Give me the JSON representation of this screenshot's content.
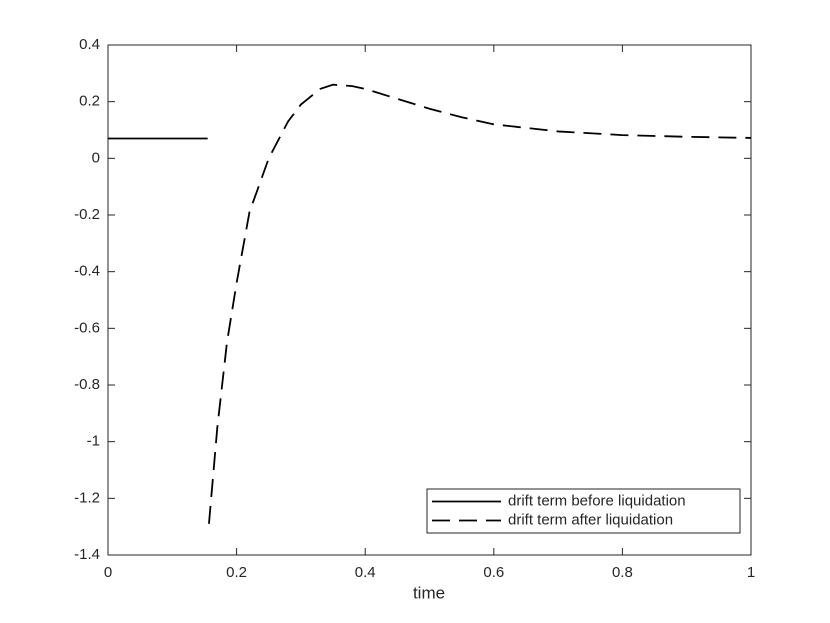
{
  "chart_data": {
    "type": "line",
    "xlabel": "time",
    "xlim": [
      0,
      1
    ],
    "xticks": [
      0,
      0.2,
      0.4,
      0.6,
      0.8,
      1
    ],
    "ylim": [
      -1.4,
      0.4
    ],
    "yticks": [
      0.4,
      0.2,
      0,
      -0.2,
      -0.4,
      -0.6,
      -0.8,
      -1,
      -1.2,
      -1.4
    ],
    "grid": false,
    "legend": "lower right",
    "series": [
      {
        "name": "drift term before liquidation",
        "color": "#000000",
        "style": "solid",
        "x": [
          0,
          0.155
        ],
        "values": [
          0.07,
          0.07
        ]
      },
      {
        "name": "drift term after liquidation",
        "color": "#000000",
        "style": "dashed",
        "x": [
          0.157,
          0.17,
          0.185,
          0.2,
          0.22,
          0.25,
          0.28,
          0.3,
          0.33,
          0.35,
          0.38,
          0.4,
          0.45,
          0.5,
          0.55,
          0.6,
          0.7,
          0.8,
          0.9,
          1
        ],
        "values": [
          -1.29,
          -0.95,
          -0.65,
          -0.44,
          -0.19,
          0.0,
          0.13,
          0.19,
          0.245,
          0.26,
          0.255,
          0.245,
          0.21,
          0.175,
          0.145,
          0.12,
          0.095,
          0.082,
          0.076,
          0.072
        ]
      }
    ]
  }
}
